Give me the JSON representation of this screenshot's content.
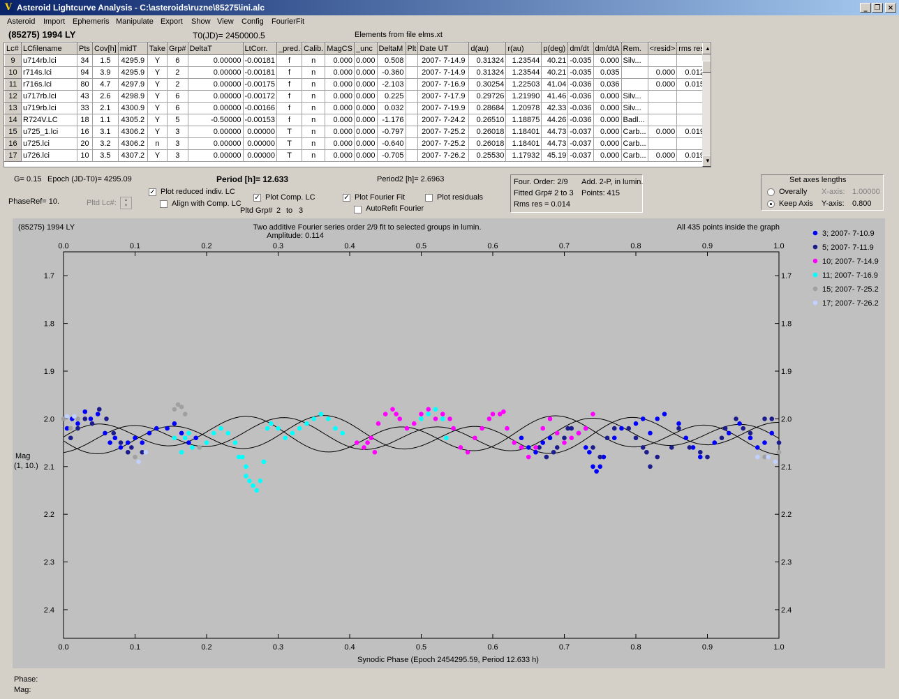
{
  "window": {
    "title": "Asteroid Lightcurve Analysis - C:\\asteroids\\ruzne\\85275\\ini.alc",
    "icon": "V",
    "minimize_glyph": "_",
    "maximize_glyph": "❐",
    "close_glyph": "×"
  },
  "menu": [
    "Asteroid",
    "Import",
    "Ephemeris",
    "Manipulate",
    "Export",
    "Show",
    "View",
    "Config",
    "FourierFit"
  ],
  "header": {
    "asteroid": "(85275) 1994 LY",
    "t0": "T0(JD)= 2450000.5",
    "elements": "Elements from file elms.xt"
  },
  "table": {
    "columns": [
      "Lc#",
      "LCfilename",
      "Pts",
      "Cov[h]",
      "midT",
      "Take",
      "Grp#",
      "DeltaT",
      "LtCorr.",
      "_pred.",
      "Calib.",
      "MagCS",
      "_unc",
      "DeltaM",
      "Plt",
      "Date UT",
      "d(au)",
      "r(au)",
      "p(deg)",
      "dm/dt",
      "dm/dtA",
      "Rem.",
      "<resid>",
      "rms res"
    ],
    "rows": [
      [
        "9",
        "u714rb.lci",
        "34",
        "1.5",
        "4295.9",
        "Y",
        "6",
        "0.00000",
        "-0.00181",
        "f",
        "n",
        "0.000",
        "0.000",
        "0.508",
        "",
        "2007- 7-14.9",
        "0.31324",
        "1.23544",
        "40.21",
        "-0.035",
        "0.000",
        "Silv...",
        "",
        ""
      ],
      [
        "10",
        "r714s.lci",
        "94",
        "3.9",
        "4295.9",
        "Y",
        "2",
        "0.00000",
        "-0.00181",
        "f",
        "n",
        "0.000",
        "0.000",
        "-0.360",
        "",
        "2007- 7-14.9",
        "0.31324",
        "1.23544",
        "40.21",
        "-0.035",
        "0.035",
        "",
        "0.000",
        "0.012"
      ],
      [
        "11",
        "r716s.lci",
        "80",
        "4.7",
        "4297.9",
        "Y",
        "2",
        "0.00000",
        "-0.00175",
        "f",
        "n",
        "0.000",
        "0.000",
        "-2.103",
        "",
        "2007- 7-16.9",
        "0.30254",
        "1.22503",
        "41.04",
        "-0.036",
        "0.036",
        "",
        "0.000",
        "0.015"
      ],
      [
        "12",
        "u717rb.lci",
        "43",
        "2.6",
        "4298.9",
        "Y",
        "6",
        "0.00000",
        "-0.00172",
        "f",
        "n",
        "0.000",
        "0.000",
        "0.225",
        "",
        "2007- 7-17.9",
        "0.29726",
        "1.21990",
        "41.46",
        "-0.036",
        "0.000",
        "Silv...",
        "",
        ""
      ],
      [
        "13",
        "u719rb.lci",
        "33",
        "2.1",
        "4300.9",
        "Y",
        "6",
        "0.00000",
        "-0.00166",
        "f",
        "n",
        "0.000",
        "0.000",
        "0.032",
        "",
        "2007- 7-19.9",
        "0.28684",
        "1.20978",
        "42.33",
        "-0.036",
        "0.000",
        "Silv...",
        "",
        ""
      ],
      [
        "14",
        "R724V.LC",
        "18",
        "1.1",
        "4305.2",
        "Y",
        "5",
        "-0.50000",
        "-0.00153",
        "f",
        "n",
        "0.000",
        "0.000",
        "-1.176",
        "",
        "2007- 7-24.2",
        "0.26510",
        "1.18875",
        "44.26",
        "-0.036",
        "0.000",
        "Badl...",
        "",
        ""
      ],
      [
        "15",
        "u725_1.lci",
        "16",
        "3.1",
        "4306.2",
        "Y",
        "3",
        "0.00000",
        "0.00000",
        "T",
        "n",
        "0.000",
        "0.000",
        "-0.797",
        "",
        "2007- 7-25.2",
        "0.26018",
        "1.18401",
        "44.73",
        "-0.037",
        "0.000",
        "Carb...",
        "0.000",
        "0.019"
      ],
      [
        "16",
        "u725.lci",
        "20",
        "3.2",
        "4306.2",
        "n",
        "3",
        "0.00000",
        "0.00000",
        "T",
        "n",
        "0.000",
        "0.000",
        "-0.640",
        "",
        "2007- 7-25.2",
        "0.26018",
        "1.18401",
        "44.73",
        "-0.037",
        "0.000",
        "Carb...",
        "",
        ""
      ],
      [
        "17",
        "u726.lci",
        "10",
        "3.5",
        "4307.2",
        "Y",
        "3",
        "0.00000",
        "0.00000",
        "T",
        "n",
        "0.000",
        "0.000",
        "-0.705",
        "",
        "2007- 7-26.2",
        "0.25530",
        "1.17932",
        "45.19",
        "-0.037",
        "0.000",
        "Carb...",
        "0.000",
        "0.019"
      ]
    ]
  },
  "controls": {
    "g_value": "G= 0.15",
    "epoch": "Epoch (JD-T0)= 4295.09",
    "period": "Period [h]= 12.633",
    "period2": "Period2 [h]= 2.6963",
    "phase_ref": "PhaseRef= 10.",
    "pltd_lc_label": "Pltd Lc#:",
    "plot_reduced_label": "Plot reduced indiv. LC",
    "plot_reduced_checked": true,
    "align_label": "Align with Comp. LC",
    "align_checked": false,
    "plot_comp_label": "Plot Comp. LC",
    "plot_comp_checked": true,
    "pltd_grp_label": "Pltd Grp#",
    "pltd_grp_from": "2",
    "pltd_grp_to_word": "to",
    "pltd_grp_to": "3",
    "plot_fourier_label": "Plot Fourier Fit",
    "plot_fourier_checked": true,
    "autorefit_label": "AutoRefit Fourier",
    "autorefit_checked": false,
    "plot_residuals_label": "Plot residuals",
    "plot_residuals_checked": false,
    "check_glyph": "✓"
  },
  "fit_info": {
    "four_order": "Four. Order:  2/9",
    "add_mode": "Add. 2-P, in lumin.",
    "fitted_grp": "Fitted Grp# 2 to 3",
    "points": "Points: 415",
    "rms": "Rms res     = 0.014"
  },
  "axes_box": {
    "title": "Set axes lengths",
    "overally_label": "Overally",
    "keep_label": "Keep Axis",
    "x_label": "X-axis:",
    "x_value": "1.00000",
    "y_label": "Y-axis:",
    "y_value": "0.800",
    "selected": "Keep Axis"
  },
  "plot": {
    "asteroid": "(85275) 1994 LY",
    "title_line1": "Two additive Fourier series order 2/9 fit to selected groups in lumin.",
    "title_line2": "Amplitude: 0.114",
    "points_note": "All 435 points inside the graph",
    "ylabel_line1": "Mag",
    "ylabel_line2": "(1, 10.)"
  },
  "chart_data": {
    "type": "scatter",
    "xlabel": "Synodic Phase (Epoch 2454295.59, Period 12.633 h)",
    "ylabel": "Mag",
    "xlim": [
      0.0,
      1.0
    ],
    "ylim": [
      2.46,
      1.65
    ],
    "y_inverted": true,
    "x_ticks": [
      "0.0",
      "0.1",
      "0.2",
      "0.3",
      "0.4",
      "0.5",
      "0.6",
      "0.7",
      "0.8",
      "0.9",
      "1.0"
    ],
    "y_ticks": [
      "1.7",
      "1.8",
      "1.9",
      "2.0",
      "2.1",
      "2.2",
      "2.3",
      "2.4"
    ],
    "background": "#c0c0c0",
    "series": [
      {
        "name": "3; 2007- 7-10.9",
        "color": "#0000ff",
        "points": [
          [
            0.005,
            2.02
          ],
          [
            0.012,
            2.0
          ],
          [
            0.02,
            2.01
          ],
          [
            0.03,
            1.985
          ],
          [
            0.038,
            2.0
          ],
          [
            0.048,
            1.99
          ],
          [
            0.058,
            2.03
          ],
          [
            0.065,
            2.05
          ],
          [
            0.072,
            2.04
          ],
          [
            0.08,
            2.06
          ],
          [
            0.09,
            2.05
          ],
          [
            0.1,
            2.04
          ],
          [
            0.11,
            2.05
          ],
          [
            0.12,
            2.03
          ],
          [
            0.13,
            2.02
          ],
          [
            0.145,
            2.02
          ],
          [
            0.155,
            2.01
          ],
          [
            0.165,
            2.03
          ],
          [
            0.175,
            2.05
          ],
          [
            0.185,
            2.04
          ],
          [
            0.77,
            2.04
          ],
          [
            0.78,
            2.02
          ],
          [
            0.8,
            2.01
          ],
          [
            0.81,
            2.0
          ],
          [
            0.82,
            2.03
          ],
          [
            0.83,
            2.0
          ],
          [
            0.84,
            1.99
          ],
          [
            0.86,
            2.01
          ],
          [
            0.87,
            2.04
          ],
          [
            0.88,
            2.06
          ],
          [
            0.89,
            2.08
          ],
          [
            0.91,
            2.05
          ],
          [
            0.93,
            2.03
          ],
          [
            0.945,
            2.01
          ],
          [
            0.96,
            2.04
          ],
          [
            0.97,
            2.06
          ],
          [
            0.98,
            2.05
          ],
          [
            0.99,
            2.03
          ],
          [
            0.74,
            2.1
          ],
          [
            0.745,
            2.11
          ],
          [
            0.75,
            2.1
          ],
          [
            0.755,
            2.08
          ],
          [
            0.735,
            2.07
          ],
          [
            0.73,
            2.06
          ],
          [
            0.64,
            2.04
          ],
          [
            0.65,
            2.06
          ],
          [
            0.66,
            2.07
          ],
          [
            0.67,
            2.05
          ],
          [
            0.68,
            2.04
          ]
        ]
      },
      {
        "name": "5; 2007- 7-11.9",
        "color": "#1c1c8c",
        "points": [
          [
            0.01,
            2.04
          ],
          [
            0.02,
            2.02
          ],
          [
            0.03,
            2.0
          ],
          [
            0.04,
            2.01
          ],
          [
            0.05,
            1.98
          ],
          [
            0.06,
            2.0
          ],
          [
            0.07,
            2.03
          ],
          [
            0.08,
            2.05
          ],
          [
            0.09,
            2.07
          ],
          [
            0.095,
            2.06
          ],
          [
            0.11,
            2.07
          ],
          [
            0.69,
            2.06
          ],
          [
            0.7,
            2.04
          ],
          [
            0.705,
            2.02
          ],
          [
            0.71,
            2.02
          ],
          [
            0.72,
            2.03
          ],
          [
            0.73,
            2.02
          ],
          [
            0.74,
            2.06
          ],
          [
            0.75,
            2.08
          ],
          [
            0.76,
            2.04
          ],
          [
            0.77,
            2.02
          ],
          [
            0.79,
            2.02
          ],
          [
            0.8,
            2.04
          ],
          [
            0.81,
            2.06
          ],
          [
            0.815,
            2.07
          ],
          [
            0.82,
            2.1
          ],
          [
            0.83,
            2.08
          ],
          [
            0.85,
            2.06
          ],
          [
            0.86,
            2.02
          ],
          [
            0.875,
            2.06
          ],
          [
            0.89,
            2.07
          ],
          [
            0.9,
            2.08
          ],
          [
            0.92,
            2.04
          ],
          [
            0.925,
            2.02
          ],
          [
            0.94,
            2.0
          ],
          [
            0.95,
            2.02
          ],
          [
            0.96,
            2.03
          ],
          [
            0.98,
            2.0
          ],
          [
            0.99,
            2.0
          ],
          [
            1.0,
            2.05
          ],
          [
            0.665,
            2.06
          ],
          [
            0.675,
            2.08
          ],
          [
            0.685,
            2.07
          ]
        ]
      },
      {
        "name": "10; 2007- 7-14.9",
        "color": "#ff00ff",
        "points": [
          [
            0.41,
            2.05
          ],
          [
            0.42,
            2.06
          ],
          [
            0.43,
            2.04
          ],
          [
            0.44,
            2.01
          ],
          [
            0.45,
            1.99
          ],
          [
            0.46,
            1.98
          ],
          [
            0.47,
            2.0
          ],
          [
            0.48,
            2.02
          ],
          [
            0.49,
            2.01
          ],
          [
            0.5,
            1.99
          ],
          [
            0.51,
            1.98
          ],
          [
            0.52,
            2.0
          ],
          [
            0.53,
            1.99
          ],
          [
            0.54,
            2.0
          ],
          [
            0.555,
            2.06
          ],
          [
            0.565,
            2.07
          ],
          [
            0.575,
            2.04
          ],
          [
            0.585,
            2.02
          ],
          [
            0.595,
            2.0
          ],
          [
            0.6,
            1.99
          ],
          [
            0.61,
            1.99
          ],
          [
            0.62,
            2.02
          ],
          [
            0.63,
            2.05
          ],
          [
            0.64,
            2.06
          ],
          [
            0.65,
            2.08
          ],
          [
            0.66,
            2.06
          ],
          [
            0.67,
            2.02
          ],
          [
            0.68,
            2.0
          ],
          [
            0.69,
            2.03
          ],
          [
            0.7,
            2.05
          ],
          [
            0.71,
            2.04
          ],
          [
            0.72,
            2.03
          ],
          [
            0.73,
            2.02
          ],
          [
            0.74,
            1.99
          ],
          [
            0.435,
            2.07
          ],
          [
            0.425,
            2.05
          ],
          [
            0.545,
            2.02
          ],
          [
            0.465,
            1.99
          ],
          [
            0.615,
            1.985
          ]
        ]
      },
      {
        "name": "11; 2007- 7-16.9",
        "color": "#00ffff",
        "points": [
          [
            0.17,
            2.04
          ],
          [
            0.18,
            2.06
          ],
          [
            0.19,
            2.06
          ],
          [
            0.2,
            2.05
          ],
          [
            0.21,
            2.03
          ],
          [
            0.22,
            2.02
          ],
          [
            0.23,
            2.03
          ],
          [
            0.24,
            2.05
          ],
          [
            0.25,
            2.08
          ],
          [
            0.255,
            2.1
          ],
          [
            0.26,
            2.13
          ],
          [
            0.265,
            2.14
          ],
          [
            0.27,
            2.15
          ],
          [
            0.275,
            2.13
          ],
          [
            0.28,
            2.09
          ],
          [
            0.285,
            2.02
          ],
          [
            0.29,
            2.01
          ],
          [
            0.3,
            2.02
          ],
          [
            0.31,
            2.04
          ],
          [
            0.32,
            2.03
          ],
          [
            0.33,
            2.02
          ],
          [
            0.34,
            2.01
          ],
          [
            0.35,
            2.0
          ],
          [
            0.36,
            1.99
          ],
          [
            0.37,
            2.0
          ],
          [
            0.38,
            2.02
          ],
          [
            0.39,
            2.03
          ],
          [
            0.5,
            2.0
          ],
          [
            0.51,
            1.99
          ],
          [
            0.52,
            1.98
          ],
          [
            0.53,
            2.0
          ],
          [
            0.535,
            2.04
          ],
          [
            0.155,
            2.04
          ],
          [
            0.165,
            2.07
          ],
          [
            0.175,
            2.03
          ],
          [
            0.255,
            2.12
          ],
          [
            0.245,
            2.08
          ]
        ]
      },
      {
        "name": "15; 2007- 7-25.2",
        "color": "#a0a0a0",
        "points": [
          [
            0.0,
            2.0
          ],
          [
            0.01,
            2.02
          ],
          [
            0.02,
            2.0
          ],
          [
            0.155,
            1.98
          ],
          [
            0.16,
            1.97
          ],
          [
            0.165,
            1.975
          ],
          [
            0.17,
            1.99
          ],
          [
            0.19,
            2.06
          ],
          [
            0.98,
            2.08
          ],
          [
            1.0,
            2.07
          ],
          [
            0.1,
            2.08
          ]
        ]
      },
      {
        "name": "17; 2007- 7-26.2",
        "color": "#c0d0ff",
        "points": [
          [
            0.005,
            1.995
          ],
          [
            0.015,
            1.995
          ],
          [
            0.105,
            2.09
          ],
          [
            0.115,
            2.07
          ],
          [
            0.985,
            2.08
          ],
          [
            0.995,
            2.09
          ],
          [
            0.97,
            2.08
          ]
        ]
      }
    ]
  }
}
